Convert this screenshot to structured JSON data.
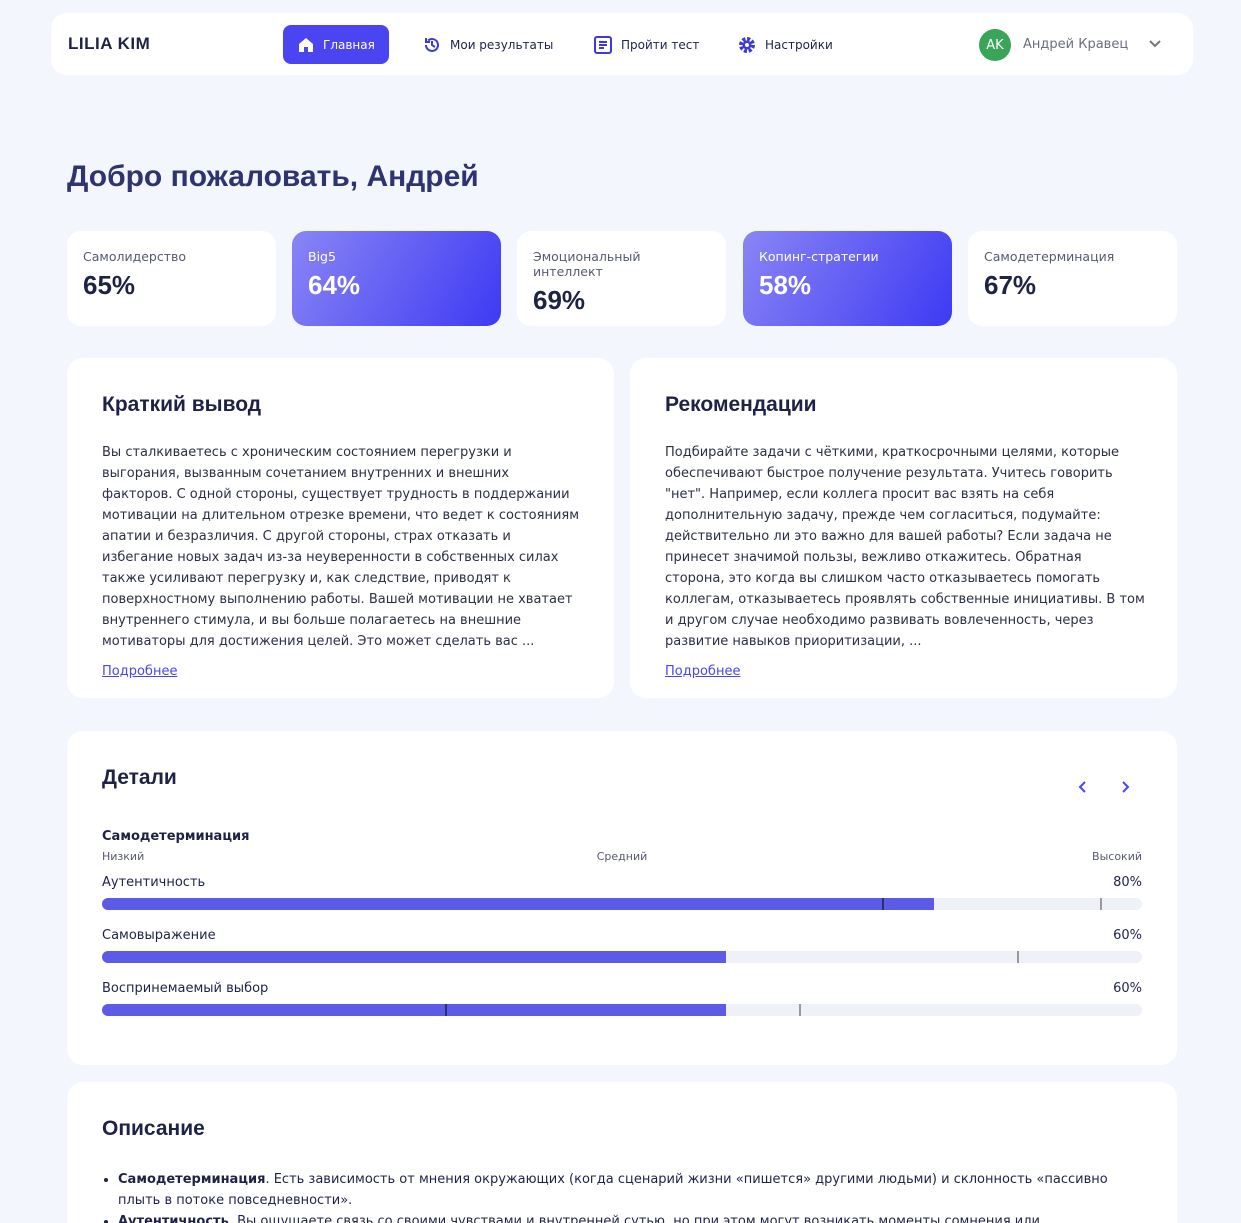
{
  "header": {
    "logo": "LILIA KIM",
    "nav": [
      "Главная",
      "Мои результаты",
      "Пройти тест",
      "Настройки"
    ],
    "user": {
      "initials": "AK",
      "name": "Андрей Кравец"
    }
  },
  "greeting": "Добро пожаловать, Андрей",
  "scores": [
    {
      "name": "Самолидерство",
      "value": "65%"
    },
    {
      "name": "Big5",
      "value": "64%"
    },
    {
      "name": "Эмоциональный интеллект",
      "value": "69%"
    },
    {
      "name": "Копинг-стратегии",
      "value": "58%"
    },
    {
      "name": "Самодетерминация",
      "value": "67%"
    }
  ],
  "summary": {
    "title": "Краткий вывод",
    "text": "Вы сталкиваетесь с хроническим состоянием перегрузки и выгорания, вызванным сочетанием внутренних и внешних факторов. С одной стороны, существует трудность в поддержании мотивации на длительном отрезке времени, что ведет к состояниям апатии и безразличия. С другой стороны, страх отказать и избегание новых задач из-за неуверенности в собственных силах также усиливают перегрузку и, как следствие, приводят к поверхностному выполнению работы. Вашей мотивации не хватает внутреннего стимула, и вы больше полагаетесь на внешние мотиваторы для достижения целей. Это может сделать вас ...",
    "link": "Подробнее"
  },
  "recommendations": {
    "title": "Рекомендации",
    "text": "Подбирайте задачи с чёткими, краткосрочными целями, которые обеспечивают быстрое получение результата. Учитесь говорить \"нет\". Например, если коллега просит вас взять на себя дополнительную задачу, прежде чем согласиться, подумайте: действительно ли это важно для вашей работы? Если задача не принесет значимой пользы, вежливо откажитесь. Обратная сторона, это когда вы слишком часто отказываетесь помогать коллегам, отказываетесь проявлять собственные инициативы. В том и другом случае необходимо развивать вовлеченность, через развитие навыков приоритизации, ...",
    "link": "Подробнее"
  },
  "details": {
    "title": "Детали",
    "scale_title": "Самодетерминация",
    "scale": [
      "Низкий",
      "Средний",
      "Высокий"
    ],
    "max": 100,
    "rows": [
      {
        "name": "Аутентичность",
        "value": 80,
        "label": "80%",
        "markers": [
          75,
          96
        ]
      },
      {
        "name": "Самовыражение",
        "value": 60,
        "label": "60%",
        "markers": [
          88
        ]
      },
      {
        "name": "Воспринемаемый выбор",
        "value": 60,
        "label": "60%",
        "markers": [
          33,
          67
        ]
      }
    ]
  },
  "description": {
    "title": "Описание",
    "items": [
      {
        "term": "Самодетерминация",
        "text": ". Есть зависимость от мнения окружающих (когда сценарий жизни «пишется» другими людьми) и склонность «пассивно плыть в потоке повседневности»."
      },
      {
        "term": "Аутентичность",
        "text": ". Вы ощущаете связь со своими чувствами и внутренней сутью, но при этом могут возникать моменты сомнения или неуверенности в"
      }
    ]
  }
}
